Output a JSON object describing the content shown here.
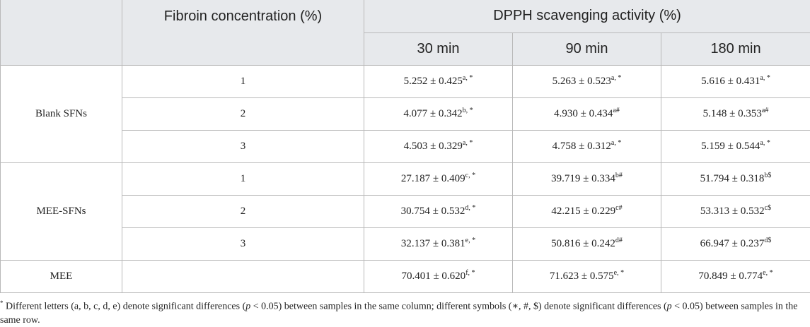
{
  "header": {
    "fibroin": "Fibroin concentration (%)",
    "dpph": "DPPH scavenging activity (%)",
    "times": [
      "30 min",
      "90 min",
      "180 min"
    ]
  },
  "groups": [
    {
      "name": "Blank SFNs",
      "rows": [
        {
          "conc": "1",
          "vals": [
            {
              "v": "5.252 ± 0.425",
              "s": "a, *"
            },
            {
              "v": "5.263 ± 0.523",
              "s": "a, *"
            },
            {
              "v": "5.616 ± 0.431",
              "s": "a, *"
            }
          ]
        },
        {
          "conc": "2",
          "vals": [
            {
              "v": "4.077 ± 0.342",
              "s": "b, *"
            },
            {
              "v": "4.930 ± 0.434",
              "s": "a#"
            },
            {
              "v": "5.148 ± 0.353",
              "s": "a#"
            }
          ]
        },
        {
          "conc": "3",
          "vals": [
            {
              "v": "4.503 ± 0.329",
              "s": "a, *"
            },
            {
              "v": "4.758 ± 0.312",
              "s": "a, *"
            },
            {
              "v": "5.159 ± 0.544",
              "s": "a, *"
            }
          ]
        }
      ]
    },
    {
      "name": "MEE-SFNs",
      "rows": [
        {
          "conc": "1",
          "vals": [
            {
              "v": "27.187 ± 0.409",
              "s": "c, *"
            },
            {
              "v": "39.719 ± 0.334",
              "s": "b#"
            },
            {
              "v": "51.794 ± 0.318",
              "s": "b$"
            }
          ]
        },
        {
          "conc": "2",
          "vals": [
            {
              "v": "30.754 ± 0.532",
              "s": "d, *"
            },
            {
              "v": "42.215 ± 0.229",
              "s": "c#"
            },
            {
              "v": "53.313 ± 0.532",
              "s": "c$"
            }
          ]
        },
        {
          "conc": "3",
          "vals": [
            {
              "v": "32.137 ± 0.381",
              "s": "e, *"
            },
            {
              "v": "50.816 ± 0.242",
              "s": "d#"
            },
            {
              "v": "66.947 ± 0.237",
              "s": "d$"
            }
          ]
        }
      ]
    },
    {
      "name": "MEE",
      "rows": [
        {
          "conc": "",
          "vals": [
            {
              "v": "70.401 ± 0.620",
              "s": "f, *"
            },
            {
              "v": "71.623 ± 0.575",
              "s": "e, *"
            },
            {
              "v": "70.849 ± 0.774",
              "s": "e, *"
            }
          ]
        }
      ]
    }
  ],
  "footnote": {
    "mark": "*",
    "part1": " Different letters (a, b, c, d, e) denote significant differences (",
    "p1": "p",
    "part2": " < 0.05) between samples in the same column; different symbols (∗, #, $) denote significant differences (",
    "p2": "p",
    "part3": " < 0.05) between samples in the same row."
  }
}
